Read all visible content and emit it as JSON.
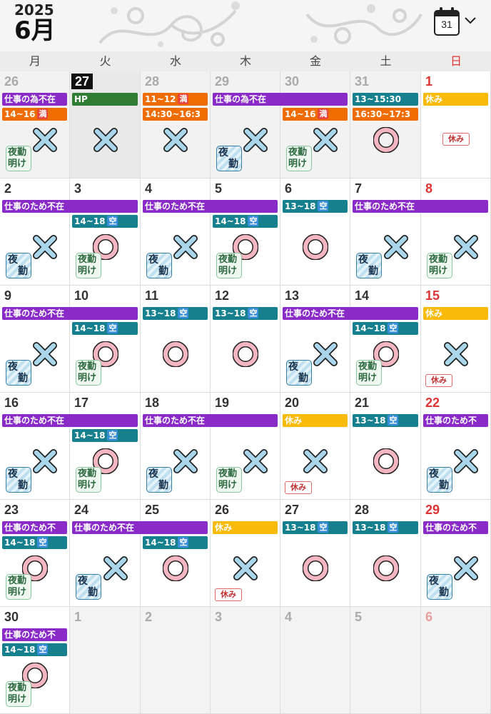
{
  "header": {
    "year": "2025",
    "month": "6月",
    "calendar_icon_day": "31"
  },
  "weekdays": [
    "月",
    "火",
    "水",
    "木",
    "金",
    "土",
    "日"
  ],
  "colors": {
    "purple": "#8a2bc8",
    "green": "#2e7d32",
    "orange": "#ef6c00",
    "teal": "#17808f",
    "yellow": "#f8bb0a",
    "sunday_red": "#d33333",
    "mark_cross": "#a9d6ea",
    "mark_circle": "#f4b6c0"
  },
  "labels": {
    "yakin_1": "夜",
    "yakin_2": "勤",
    "ake_1": "夜勤",
    "ake_2": "明け",
    "yasumi_badge": "休み",
    "man_tag": "満",
    "kuu_tag": "空"
  },
  "weeks": [
    [
      {
        "day": "26",
        "kind": "prev"
      },
      {
        "day": "27",
        "kind": "today"
      },
      {
        "day": "28",
        "kind": "prev"
      },
      {
        "day": "29",
        "kind": "prev"
      },
      {
        "day": "30",
        "kind": "prev"
      },
      {
        "day": "31",
        "kind": "prev"
      },
      {
        "day": "1",
        "kind": "sun"
      }
    ],
    [
      {
        "day": "2"
      },
      {
        "day": "3"
      },
      {
        "day": "4"
      },
      {
        "day": "5"
      },
      {
        "day": "6"
      },
      {
        "day": "7"
      },
      {
        "day": "8",
        "kind": "sun"
      }
    ],
    [
      {
        "day": "9"
      },
      {
        "day": "10"
      },
      {
        "day": "11"
      },
      {
        "day": "12"
      },
      {
        "day": "13"
      },
      {
        "day": "14"
      },
      {
        "day": "15",
        "kind": "sun"
      }
    ],
    [
      {
        "day": "16"
      },
      {
        "day": "17"
      },
      {
        "day": "18"
      },
      {
        "day": "19"
      },
      {
        "day": "20"
      },
      {
        "day": "21"
      },
      {
        "day": "22",
        "kind": "sun"
      }
    ],
    [
      {
        "day": "23"
      },
      {
        "day": "24"
      },
      {
        "day": "25"
      },
      {
        "day": "26"
      },
      {
        "day": "27"
      },
      {
        "day": "28"
      },
      {
        "day": "29",
        "kind": "sun"
      }
    ],
    [
      {
        "day": "30"
      },
      {
        "day": "1",
        "kind": "next"
      },
      {
        "day": "2",
        "kind": "next"
      },
      {
        "day": "3",
        "kind": "next"
      },
      {
        "day": "4",
        "kind": "next"
      },
      {
        "day": "5",
        "kind": "next"
      },
      {
        "day": "6",
        "kind": "nextsun"
      }
    ]
  ],
  "events": [
    {
      "week": 0,
      "start": 0,
      "span": 1,
      "slot": 0,
      "color": "purple",
      "text": "仕事の為不在"
    },
    {
      "week": 0,
      "start": 1,
      "span": 1,
      "slot": 0,
      "color": "green",
      "text": "HP"
    },
    {
      "week": 0,
      "start": 2,
      "span": 1,
      "slot": 0,
      "color": "orange",
      "text": "11~12",
      "tag": "満",
      "tagtype": "man"
    },
    {
      "week": 0,
      "start": 3,
      "span": 2,
      "slot": 0,
      "color": "purple",
      "text": "仕事の為不在"
    },
    {
      "week": 0,
      "start": 5,
      "span": 1,
      "slot": 0,
      "color": "teal",
      "text": "13~15:30"
    },
    {
      "week": 0,
      "start": 6,
      "span": 1,
      "slot": 0,
      "color": "yellow",
      "text": "休み"
    },
    {
      "week": 0,
      "start": 0,
      "span": 1,
      "slot": 1,
      "color": "orange",
      "text": "14~16",
      "tag": "満",
      "tagtype": "man"
    },
    {
      "week": 0,
      "start": 2,
      "span": 1,
      "slot": 1,
      "color": "orange",
      "text": "14:30~16:3"
    },
    {
      "week": 0,
      "start": 4,
      "span": 1,
      "slot": 1,
      "color": "orange",
      "text": "14~16",
      "tag": "満",
      "tagtype": "man"
    },
    {
      "week": 0,
      "start": 5,
      "span": 1,
      "slot": 1,
      "color": "orange",
      "text": "16:30~17:3"
    },
    {
      "week": 1,
      "start": 0,
      "span": 2,
      "slot": 0,
      "color": "purple",
      "text": "仕事のため不在"
    },
    {
      "week": 1,
      "start": 2,
      "span": 2,
      "slot": 0,
      "color": "purple",
      "text": "仕事のため不在"
    },
    {
      "week": 1,
      "start": 4,
      "span": 1,
      "slot": 0,
      "color": "teal",
      "text": "13~18",
      "tag": "空",
      "tagtype": "kuu"
    },
    {
      "week": 1,
      "start": 5,
      "span": 2,
      "slot": 0,
      "color": "purple",
      "text": "仕事のため不在"
    },
    {
      "week": 1,
      "start": 1,
      "span": 1,
      "slot": 1,
      "color": "teal",
      "text": "14~18",
      "tag": "空",
      "tagtype": "kuu"
    },
    {
      "week": 1,
      "start": 3,
      "span": 1,
      "slot": 1,
      "color": "teal",
      "text": "14~18",
      "tag": "空",
      "tagtype": "kuu"
    },
    {
      "week": 2,
      "start": 0,
      "span": 2,
      "slot": 0,
      "color": "purple",
      "text": "仕事のため不在"
    },
    {
      "week": 2,
      "start": 2,
      "span": 1,
      "slot": 0,
      "color": "teal",
      "text": "13~18",
      "tag": "空",
      "tagtype": "kuu"
    },
    {
      "week": 2,
      "start": 3,
      "span": 1,
      "slot": 0,
      "color": "teal",
      "text": "13~18",
      "tag": "空",
      "tagtype": "kuu"
    },
    {
      "week": 2,
      "start": 4,
      "span": 2,
      "slot": 0,
      "color": "purple",
      "text": "仕事のため不在"
    },
    {
      "week": 2,
      "start": 6,
      "span": 1,
      "slot": 0,
      "color": "yellow",
      "text": "休み"
    },
    {
      "week": 2,
      "start": 1,
      "span": 1,
      "slot": 1,
      "color": "teal",
      "text": "14~18",
      "tag": "空",
      "tagtype": "kuu"
    },
    {
      "week": 2,
      "start": 5,
      "span": 1,
      "slot": 1,
      "color": "teal",
      "text": "14~18",
      "tag": "空",
      "tagtype": "kuu"
    },
    {
      "week": 3,
      "start": 0,
      "span": 2,
      "slot": 0,
      "color": "purple",
      "text": "仕事のため不在"
    },
    {
      "week": 3,
      "start": 2,
      "span": 2,
      "slot": 0,
      "color": "purple",
      "text": "仕事のため不在"
    },
    {
      "week": 3,
      "start": 4,
      "span": 1,
      "slot": 0,
      "color": "yellow",
      "text": "休み"
    },
    {
      "week": 3,
      "start": 5,
      "span": 1,
      "slot": 0,
      "color": "teal",
      "text": "13~18",
      "tag": "空",
      "tagtype": "kuu"
    },
    {
      "week": 3,
      "start": 6,
      "span": 1,
      "slot": 0,
      "color": "purple",
      "text": "仕事のため不"
    },
    {
      "week": 3,
      "start": 1,
      "span": 1,
      "slot": 1,
      "color": "teal",
      "text": "14~18",
      "tag": "空",
      "tagtype": "kuu"
    },
    {
      "week": 4,
      "start": 0,
      "span": 1,
      "slot": 0,
      "color": "purple",
      "text": "仕事のため不"
    },
    {
      "week": 4,
      "start": 1,
      "span": 2,
      "slot": 0,
      "color": "purple",
      "text": "仕事のため不在"
    },
    {
      "week": 4,
      "start": 3,
      "span": 1,
      "slot": 0,
      "color": "yellow",
      "text": "休み"
    },
    {
      "week": 4,
      "start": 4,
      "span": 1,
      "slot": 0,
      "color": "teal",
      "text": "13~18",
      "tag": "空",
      "tagtype": "kuu"
    },
    {
      "week": 4,
      "start": 5,
      "span": 1,
      "slot": 0,
      "color": "teal",
      "text": "13~18",
      "tag": "空",
      "tagtype": "kuu"
    },
    {
      "week": 4,
      "start": 6,
      "span": 1,
      "slot": 0,
      "color": "purple",
      "text": "仕事のため不"
    },
    {
      "week": 4,
      "start": 0,
      "span": 1,
      "slot": 1,
      "color": "teal",
      "text": "14~18",
      "tag": "空",
      "tagtype": "kuu"
    },
    {
      "week": 4,
      "start": 2,
      "span": 1,
      "slot": 1,
      "color": "teal",
      "text": "14~18",
      "tag": "空",
      "tagtype": "kuu"
    },
    {
      "week": 5,
      "start": 0,
      "span": 1,
      "slot": 0,
      "color": "purple",
      "text": "仕事のため不"
    },
    {
      "week": 5,
      "start": 0,
      "span": 1,
      "slot": 1,
      "color": "teal",
      "text": "14~18",
      "tag": "空",
      "tagtype": "kuu"
    }
  ],
  "marks": [
    [
      {
        "mark": "cross",
        "stamp": "ake"
      },
      {
        "mark": "cross"
      },
      {
        "mark": "cross"
      },
      {
        "mark": "cross",
        "stamp": "yakin"
      },
      {
        "mark": "cross",
        "stamp": "ake"
      },
      {
        "mark": "circle"
      },
      {
        "stamp": "yasumi"
      }
    ],
    [
      {
        "mark": "cross",
        "stamp": "yakin"
      },
      {
        "mark": "circle",
        "stamp": "ake"
      },
      {
        "mark": "cross",
        "stamp": "yakin"
      },
      {
        "mark": "circle",
        "stamp": "ake"
      },
      {
        "mark": "circle"
      },
      {
        "mark": "cross",
        "stamp": "yakin"
      },
      {
        "mark": "cross",
        "stamp": "ake"
      }
    ],
    [
      {
        "mark": "cross",
        "stamp": "yakin"
      },
      {
        "mark": "circle",
        "stamp": "ake"
      },
      {
        "mark": "circle"
      },
      {
        "mark": "circle"
      },
      {
        "mark": "cross",
        "stamp": "yakin"
      },
      {
        "mark": "circle",
        "stamp": "ake"
      },
      {
        "mark": "cross",
        "stamp": "yasumi"
      }
    ],
    [
      {
        "mark": "cross",
        "stamp": "yakin"
      },
      {
        "mark": "circle",
        "stamp": "ake"
      },
      {
        "mark": "cross",
        "stamp": "yakin"
      },
      {
        "mark": "cross",
        "stamp": "ake"
      },
      {
        "mark": "cross",
        "stamp": "yasumi"
      },
      {
        "mark": "circle"
      },
      {
        "mark": "cross",
        "stamp": "yakin"
      }
    ],
    [
      {
        "mark": "circle",
        "stamp": "ake"
      },
      {
        "mark": "cross",
        "stamp": "yakin"
      },
      {
        "mark": "circle"
      },
      {
        "mark": "cross",
        "stamp": "yasumi"
      },
      {
        "mark": "circle"
      },
      {
        "mark": "circle"
      },
      {
        "mark": "cross",
        "stamp": "yakin"
      }
    ],
    [
      {
        "mark": "circle",
        "stamp": "ake"
      },
      {},
      {},
      {},
      {},
      {},
      {}
    ]
  ]
}
